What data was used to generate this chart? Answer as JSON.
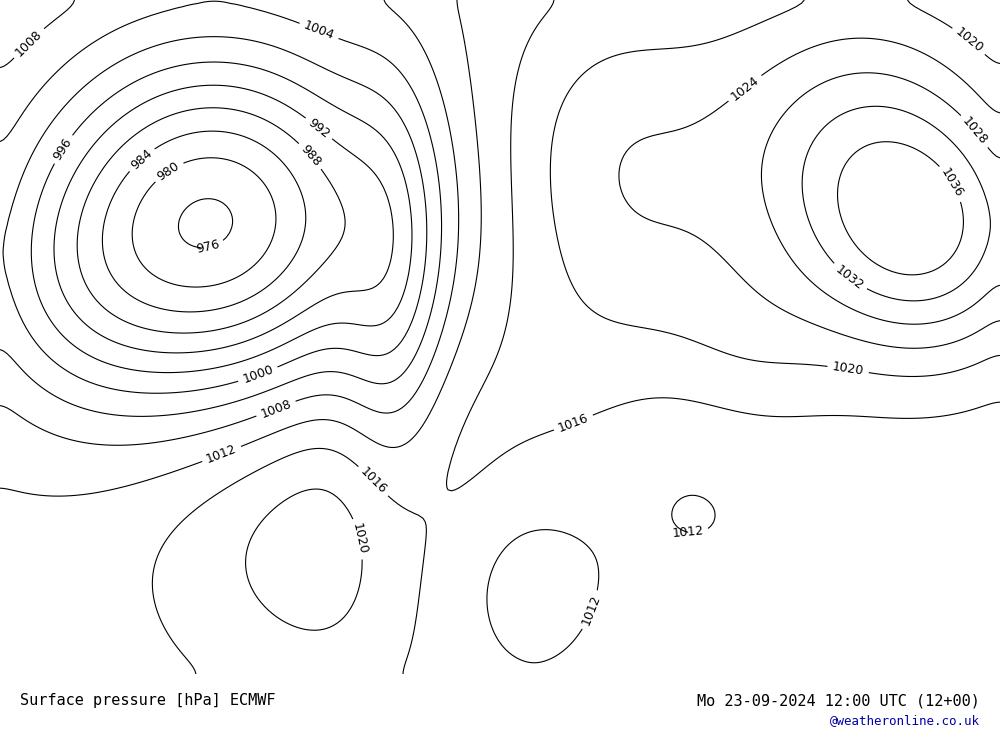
{
  "title_left": "Surface pressure [hPa] ECMWF",
  "title_right": "Mo 23-09-2024 12:00 UTC (12+00)",
  "credit": "@weatheronline.co.uk",
  "bg_color": "#e8e8e8",
  "land_color": "#c8e8a0",
  "ocean_color": "#dcdcdc",
  "border_color": "#808080",
  "contour_black": "#000000",
  "contour_blue": "#0000cc",
  "contour_red": "#cc0000",
  "label_fontsize": 9,
  "footer_fontsize": 11,
  "footer_credit_fontsize": 9,
  "figwidth": 10.0,
  "figheight": 7.33
}
